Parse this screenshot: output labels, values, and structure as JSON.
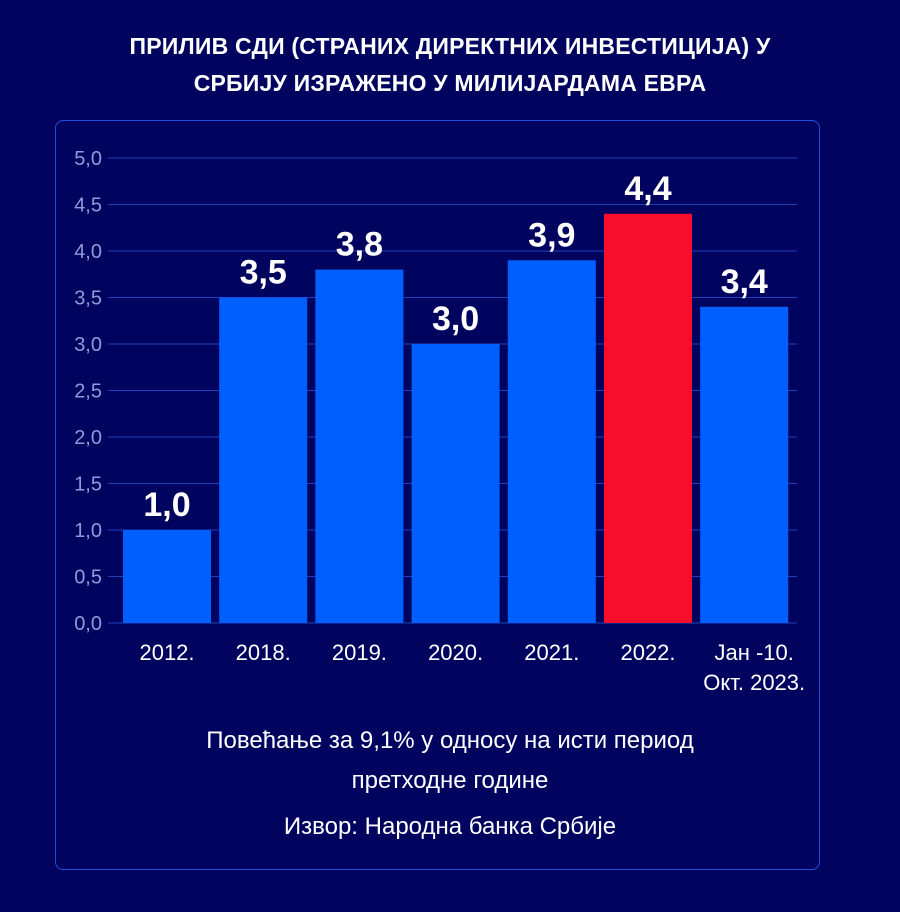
{
  "title_lines": [
    "ПРИЛИВ СДИ (СТРАНИХ ДИРЕКТНИХ ИНВЕСТИЦИЈА) У",
    "СРБИЈУ ИЗРАЖЕНО У МИЛИЈАРДАМА ЕВРА"
  ],
  "footnote": {
    "line1": "Повећање за 9,1% у односу на исти период",
    "line2": "претходне године",
    "source": "Извор: Народна банка Србије"
  },
  "colors": {
    "background": "#01045f",
    "bar": "#0060ff",
    "highlight": "#f80e2b",
    "grid": "#1f3fb8",
    "tick_label": "#8f9bd8"
  },
  "chart_data": {
    "type": "bar",
    "categories": [
      [
        "2012."
      ],
      [
        "2018."
      ],
      [
        "2019."
      ],
      [
        "2020."
      ],
      [
        "2021."
      ],
      [
        "2022."
      ],
      [
        "Јан -10.",
        "Окт. 2023."
      ]
    ],
    "values": [
      1.0,
      3.5,
      3.8,
      3.0,
      3.9,
      4.4,
      3.4
    ],
    "value_labels": [
      "1,0",
      "3,5",
      "3,8",
      "3,0",
      "3,9",
      "4,4",
      "3,4"
    ],
    "highlight_index": 5,
    "ylim": [
      0,
      5.0
    ],
    "yticks": [
      0,
      0.5,
      1.0,
      1.5,
      2.0,
      2.5,
      3.0,
      3.5,
      4.0,
      4.5,
      5.0
    ],
    "ytick_labels": [
      "0,0",
      "0,5",
      "1,0",
      "1,5",
      "2,0",
      "2,5",
      "3,0",
      "3,5",
      "4,0",
      "4,5",
      "5,0"
    ],
    "grid": true,
    "legend": "none"
  }
}
